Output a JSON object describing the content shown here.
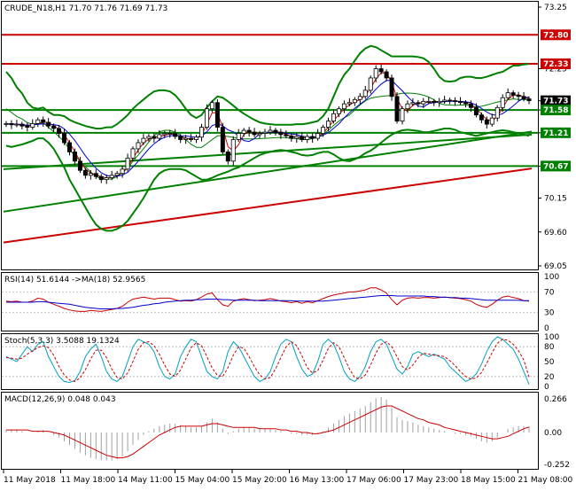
{
  "header": {
    "main": "CRUDE_N18,H1  71.70 71.76 71.69 71.73",
    "rsi": "RSI(14) 51.6144  ->MA(18) 52.9565",
    "stoch": "Stoch(5,3,3) 3.5088 19.1324",
    "macd": "MACD(12,26,9) 0.048 0.043"
  },
  "colors": {
    "background": "#ffffff",
    "bullish_candle": "#000000",
    "bearish_candle": "#000000",
    "bollinger": "#008000",
    "levels": "#008000",
    "resistance": "#cc0000",
    "rsi": "#cc0000",
    "rsi_ma": "#0000cc",
    "stoch_main": "#00a0c0",
    "stoch_signal": "#cc0000",
    "macd_line": "#cc0000",
    "macd_hist": "#a0a0a0"
  },
  "chart_data": [
    {
      "type": "candlestick",
      "ylim": [
        69.05,
        73.25
      ],
      "y_ticks": [
        "73.25",
        "72.25",
        "71.73",
        "71.58",
        "71.21",
        "70.67",
        "70.15",
        "69.60",
        "69.05"
      ],
      "price_labels": [
        {
          "text": "72.80",
          "value": 72.8,
          "color": "#cc0000"
        },
        {
          "text": "72.33",
          "value": 72.33,
          "color": "#cc0000"
        },
        {
          "text": "71.73",
          "value": 71.73,
          "color": "#000000"
        },
        {
          "text": "71.58",
          "value": 71.58,
          "color": "#008000"
        },
        {
          "text": "71.21",
          "value": 71.21,
          "color": "#008000"
        },
        {
          "text": "70.67",
          "value": 70.67,
          "color": "#008000"
        }
      ],
      "horizontal_levels": [
        {
          "value": 72.8,
          "color": "#cc0000"
        },
        {
          "value": 72.33,
          "color": "#cc0000"
        },
        {
          "value": 71.58,
          "color": "#008000"
        },
        {
          "value": 71.21,
          "color": "#008000"
        },
        {
          "value": 70.67,
          "color": "#008000"
        }
      ],
      "x_tick_labels": [
        "11 May 2018",
        "11 May 18:00",
        "14 May 11:00",
        "15 May 04:00",
        "15 May 20:00",
        "16 May 13:00",
        "17 May 06:00",
        "17 May 23:00",
        "18 May 15:00",
        "21 May 08:00"
      ],
      "close": [
        71.36,
        71.34,
        71.35,
        71.32,
        71.3,
        71.36,
        71.42,
        71.38,
        71.32,
        71.28,
        71.2,
        71.05,
        70.9,
        70.75,
        70.6,
        70.52,
        70.55,
        70.5,
        70.45,
        70.48,
        70.52,
        70.55,
        70.62,
        70.8,
        70.95,
        71.05,
        71.12,
        71.15,
        71.12,
        71.18,
        71.2,
        71.2,
        71.15,
        71.1,
        71.12,
        71.1,
        71.14,
        71.3,
        71.6,
        71.7,
        71.3,
        70.9,
        70.75,
        71.1,
        71.2,
        71.25,
        71.22,
        71.18,
        71.2,
        71.22,
        71.25,
        71.22,
        71.18,
        71.16,
        71.12,
        71.15,
        71.1,
        71.15,
        71.12,
        71.2,
        71.3,
        71.4,
        71.52,
        71.6,
        71.68,
        71.7,
        71.75,
        71.8,
        71.9,
        72.1,
        72.25,
        72.2,
        72.1,
        71.8,
        71.4,
        71.6,
        71.68,
        71.7,
        71.68,
        71.72,
        71.72,
        71.7,
        71.72,
        71.74,
        71.73,
        71.72,
        71.7,
        71.68,
        71.62,
        71.5,
        71.42,
        71.35,
        71.45,
        71.62,
        71.78,
        71.86,
        71.82,
        71.8,
        71.76,
        71.73
      ],
      "bb_upper": [
        72.2,
        72.1,
        71.95,
        71.85,
        71.7,
        71.62,
        71.6,
        71.62,
        71.55,
        71.5,
        71.5,
        71.48,
        71.42,
        71.38,
        71.35,
        71.32,
        71.3,
        71.28,
        71.28,
        71.3,
        71.3,
        71.35,
        71.42,
        71.5,
        71.6,
        71.68,
        71.75,
        71.82,
        71.88,
        71.9,
        71.9,
        71.88,
        71.82,
        71.72,
        71.6,
        71.5,
        71.45,
        71.5,
        71.62,
        71.72,
        71.8,
        71.78,
        71.72,
        71.65,
        71.58,
        71.52,
        71.47,
        71.42,
        71.38,
        71.36,
        71.35,
        71.34,
        71.34,
        71.34,
        71.34,
        71.35,
        71.35,
        71.36,
        71.38,
        71.4,
        71.48,
        71.6,
        71.8,
        72.0,
        72.15,
        72.25,
        72.38,
        72.5,
        72.58,
        72.62,
        72.6,
        72.55,
        72.5,
        72.45,
        72.45,
        72.45,
        72.45,
        72.45,
        72.44,
        72.42,
        72.36,
        72.25,
        72.12,
        72.05,
        72.04,
        72.05,
        72.1,
        72.12,
        72.12,
        72.1,
        72.1,
        72.12,
        72.15,
        72.18,
        72.2,
        72.25,
        72.3,
        72.3,
        72.32,
        72.33
      ],
      "bb_lower": [
        71.0,
        70.98,
        71.0,
        71.02,
        71.05,
        71.08,
        71.12,
        71.12,
        71.05,
        70.95,
        70.8,
        70.65,
        70.45,
        70.3,
        70.15,
        70.0,
        69.85,
        69.72,
        69.65,
        69.62,
        69.62,
        69.65,
        69.7,
        69.78,
        69.9,
        70.02,
        70.15,
        70.3,
        70.45,
        70.55,
        70.6,
        70.62,
        70.62,
        70.62,
        70.6,
        70.55,
        70.5,
        70.45,
        70.45,
        70.48,
        70.52,
        70.55,
        70.58,
        70.62,
        70.65,
        70.7,
        70.75,
        70.8,
        70.85,
        70.88,
        70.9,
        70.92,
        70.93,
        70.92,
        70.9,
        70.88,
        70.85,
        70.84,
        70.85,
        70.88,
        70.9,
        70.9,
        70.86,
        70.8,
        70.76,
        70.75,
        70.78,
        70.82,
        70.88,
        70.92,
        70.98,
        71.05,
        71.12,
        71.18,
        71.22,
        71.25,
        71.26,
        71.25,
        71.24,
        71.22,
        71.22,
        71.24,
        71.26,
        71.28,
        71.28,
        71.26,
        71.22,
        71.2,
        71.18,
        71.16,
        71.18,
        71.2,
        71.22,
        71.24,
        71.25,
        71.24,
        71.22,
        71.2,
        71.18,
        71.16
      ],
      "trendlines": [
        {
          "from": [
            0,
            69.93
          ],
          "to": [
            99,
            71.23
          ],
          "color": "#008000"
        },
        {
          "from": [
            0,
            70.62
          ],
          "to": [
            99,
            71.18
          ],
          "color": "#008000"
        },
        {
          "from": [
            0,
            69.43
          ],
          "to": [
            99,
            70.63
          ],
          "color": "#cc0000"
        }
      ]
    },
    {
      "type": "line",
      "name_text": "RSI(14)",
      "ylim": [
        0,
        100
      ],
      "y_ticks": [
        "100",
        "70",
        "30",
        "0"
      ],
      "levels": [
        70,
        30
      ],
      "rsi": [
        52,
        51,
        52,
        50,
        50,
        52,
        58,
        56,
        50,
        46,
        42,
        38,
        35,
        33,
        32,
        32,
        34,
        33,
        32,
        34,
        36,
        38,
        42,
        50,
        56,
        58,
        60,
        58,
        56,
        58,
        58,
        58,
        55,
        52,
        53,
        52,
        55,
        60,
        66,
        68,
        55,
        45,
        42,
        52,
        55,
        57,
        55,
        53,
        54,
        55,
        57,
        55,
        52,
        51,
        49,
        51,
        48,
        51,
        49,
        53,
        57,
        61,
        64,
        66,
        68,
        70,
        70,
        72,
        74,
        78,
        78,
        74,
        68,
        55,
        45,
        54,
        58,
        59,
        58,
        59,
        59,
        58,
        59,
        60,
        59,
        58,
        57,
        55,
        52,
        46,
        42,
        40,
        46,
        54,
        60,
        62,
        59,
        57,
        53,
        52
      ],
      "ma": [
        50,
        50,
        50,
        50,
        50,
        50,
        51,
        51,
        50,
        49,
        48,
        47,
        46,
        44,
        42,
        40,
        39,
        38,
        37,
        37,
        37,
        38,
        38,
        39,
        40,
        42,
        44,
        45,
        47,
        48,
        50,
        51,
        52,
        53,
        54,
        54,
        55,
        55,
        56,
        56,
        56,
        55,
        55,
        54,
        54,
        54,
        54,
        54,
        53,
        53,
        53,
        53,
        53,
        53,
        53,
        52,
        52,
        52,
        52,
        52,
        52,
        53,
        54,
        55,
        56,
        57,
        58,
        59,
        60,
        61,
        62,
        63,
        63,
        63,
        62,
        62,
        62,
        62,
        62,
        62,
        61,
        61,
        60,
        60,
        59,
        59,
        58,
        58,
        57,
        56,
        55,
        54,
        54,
        54,
        54,
        54,
        54,
        54,
        53,
        53
      ]
    },
    {
      "type": "line",
      "name_text": "Stoch(5,3,3)",
      "ylim": [
        0,
        100
      ],
      "y_ticks": [
        "100",
        "80",
        "50",
        "20",
        "0"
      ],
      "main": [
        60,
        55,
        50,
        65,
        80,
        70,
        85,
        90,
        60,
        40,
        20,
        10,
        8,
        12,
        30,
        60,
        75,
        85,
        60,
        30,
        15,
        10,
        20,
        50,
        80,
        95,
        90,
        85,
        70,
        40,
        20,
        15,
        25,
        60,
        80,
        95,
        90,
        60,
        30,
        20,
        15,
        30,
        70,
        90,
        80,
        60,
        40,
        20,
        10,
        15,
        30,
        60,
        85,
        95,
        90,
        60,
        35,
        20,
        25,
        50,
        85,
        95,
        85,
        60,
        30,
        15,
        10,
        20,
        40,
        70,
        90,
        95,
        85,
        60,
        35,
        25,
        40,
        65,
        70,
        65,
        60,
        65,
        60,
        55,
        40,
        30,
        20,
        10,
        15,
        25,
        45,
        70,
        90,
        100,
        95,
        85,
        75,
        55,
        30,
        4
      ],
      "signal": [
        58,
        57,
        55,
        57,
        65,
        72,
        78,
        82,
        78,
        63,
        40,
        23,
        13,
        10,
        17,
        34,
        55,
        73,
        73,
        58,
        35,
        18,
        15,
        27,
        50,
        75,
        88,
        90,
        82,
        65,
        43,
        25,
        20,
        33,
        55,
        78,
        88,
        82,
        60,
        37,
        22,
        20,
        38,
        63,
        80,
        77,
        60,
        40,
        23,
        15,
        18,
        35,
        58,
        80,
        90,
        82,
        62,
        38,
        27,
        32,
        53,
        77,
        88,
        80,
        58,
        35,
        18,
        15,
        23,
        43,
        67,
        85,
        90,
        80,
        60,
        40,
        33,
        43,
        58,
        67,
        65,
        63,
        62,
        60,
        52,
        42,
        30,
        20,
        15,
        17,
        28,
        47,
        68,
        87,
        95,
        93,
        85,
        72,
        53,
        19
      ]
    },
    {
      "type": "bar+line",
      "name_text": "MACD(12,26,9)",
      "ylim": [
        -0.252,
        0.266
      ],
      "y_ticks": [
        "0.266",
        "0.00",
        "-0.252"
      ],
      "histogram": [
        0.02,
        0.02,
        0.02,
        0.01,
        0.0,
        0.0,
        0.01,
        0.02,
        0.0,
        -0.02,
        -0.04,
        -0.07,
        -0.1,
        -0.13,
        -0.16,
        -0.18,
        -0.2,
        -0.21,
        -0.22,
        -0.22,
        -0.22,
        -0.21,
        -0.19,
        -0.15,
        -0.1,
        -0.06,
        -0.02,
        0.01,
        0.03,
        0.05,
        0.06,
        0.07,
        0.07,
        0.06,
        0.05,
        0.04,
        0.04,
        0.05,
        0.08,
        0.11,
        0.08,
        0.03,
        -0.01,
        0.01,
        0.03,
        0.04,
        0.04,
        0.03,
        0.03,
        0.03,
        0.03,
        0.02,
        0.01,
        0.0,
        -0.01,
        -0.01,
        -0.02,
        -0.02,
        -0.02,
        -0.01,
        0.01,
        0.04,
        0.07,
        0.1,
        0.13,
        0.15,
        0.17,
        0.19,
        0.21,
        0.24,
        0.27,
        0.28,
        0.26,
        0.2,
        0.12,
        0.1,
        0.09,
        0.08,
        0.06,
        0.05,
        0.04,
        0.03,
        0.02,
        0.01,
        0.0,
        -0.01,
        -0.01,
        -0.02,
        -0.03,
        -0.05,
        -0.07,
        -0.08,
        -0.07,
        -0.04,
        0.0,
        0.03,
        0.04,
        0.05,
        0.05,
        0.048
      ],
      "signal": [
        0.02,
        0.02,
        0.02,
        0.02,
        0.02,
        0.01,
        0.01,
        0.01,
        0.01,
        0.0,
        -0.01,
        -0.02,
        -0.04,
        -0.06,
        -0.08,
        -0.1,
        -0.12,
        -0.14,
        -0.16,
        -0.18,
        -0.19,
        -0.2,
        -0.2,
        -0.19,
        -0.17,
        -0.14,
        -0.11,
        -0.08,
        -0.05,
        -0.02,
        0.0,
        0.02,
        0.04,
        0.05,
        0.05,
        0.05,
        0.05,
        0.05,
        0.06,
        0.07,
        0.07,
        0.06,
        0.05,
        0.04,
        0.04,
        0.04,
        0.04,
        0.04,
        0.03,
        0.03,
        0.03,
        0.03,
        0.02,
        0.02,
        0.01,
        0.01,
        0.0,
        0.0,
        -0.01,
        -0.01,
        0.0,
        0.01,
        0.02,
        0.04,
        0.06,
        0.08,
        0.1,
        0.12,
        0.14,
        0.16,
        0.18,
        0.2,
        0.21,
        0.21,
        0.19,
        0.17,
        0.15,
        0.13,
        0.11,
        0.1,
        0.08,
        0.07,
        0.06,
        0.04,
        0.03,
        0.02,
        0.01,
        0.0,
        -0.01,
        -0.02,
        -0.03,
        -0.04,
        -0.05,
        -0.05,
        -0.04,
        -0.03,
        -0.01,
        0.01,
        0.03,
        0.043
      ]
    }
  ]
}
